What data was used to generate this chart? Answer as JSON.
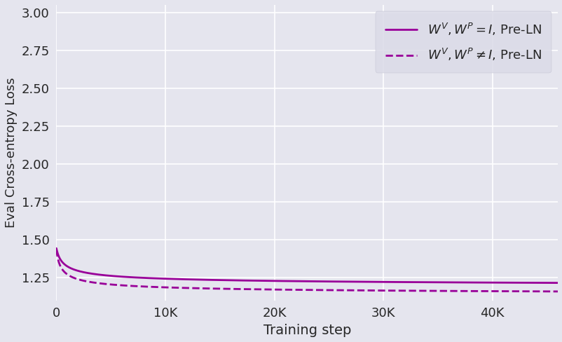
{
  "title": "",
  "xlabel": "Training step",
  "ylabel": "Eval Cross-entropy Loss",
  "xlim": [
    0,
    46000
  ],
  "ylim": [
    1.1,
    3.05
  ],
  "line1_label": "$W^V, W^P = I$, Pre-LN",
  "line2_label": "$W^V, W^P \\neq I$, Pre-LN",
  "color": "#990099",
  "background_color": "#e5e5ee",
  "axes_background": "#e5e5ee",
  "grid_color": "#ffffff",
  "xticks": [
    0,
    10000,
    20000,
    30000,
    40000
  ],
  "xtick_labels": [
    "0",
    "10K",
    "20K",
    "30K",
    "40K"
  ],
  "yticks": [
    1.25,
    1.5,
    1.75,
    2.0,
    2.25,
    2.5,
    2.75,
    3.0
  ],
  "max_steps": 46000,
  "n_points": 1000,
  "curve1_a": 1.185,
  "curve1_b": 2.85,
  "curve1_c": 300,
  "curve1_d": 0.42,
  "curve2_a": 1.13,
  "curve2_b": 3.0,
  "curve2_c": 200,
  "curve2_d": 0.43
}
